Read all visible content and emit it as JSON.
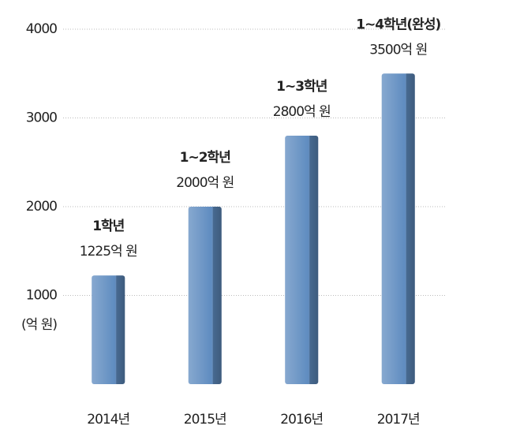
{
  "chart_data": {
    "type": "bar",
    "y_label": "(억 원)",
    "categories": [
      "2014년",
      "2015년",
      "2016년",
      "2017년"
    ],
    "values": [
      1225,
      2000,
      2800,
      3500
    ],
    "value_labels": [
      "1225억 원",
      "2000억 원",
      "2800억 원",
      "3500억 원"
    ],
    "bar_labels": [
      "1학년",
      "1~2학년",
      "1~3학년",
      "1~4학년(완성)"
    ],
    "color": "#5f8cc0",
    "ylim": [
      0,
      4000
    ],
    "yticks": [
      1000,
      2000,
      3000,
      4000
    ],
    "grid": true
  }
}
